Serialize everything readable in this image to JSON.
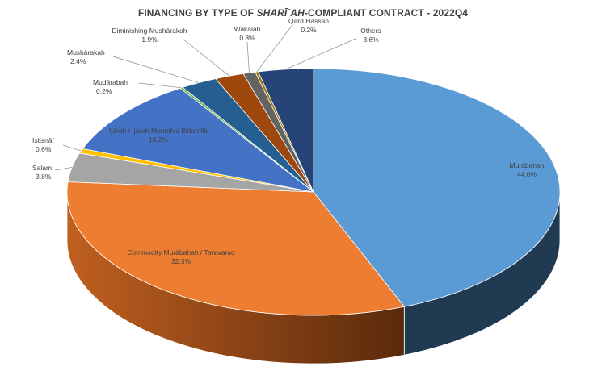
{
  "chart_data": {
    "type": "pie",
    "title": {
      "prefix": "FINANCING BY TYPE OF ",
      "italic": "SHARĪ`AH",
      "suffix": "-COMPLIANT CONTRACT - 2022Q4"
    },
    "slices": [
      {
        "name": "Murābahah",
        "value": 44.0,
        "label": "44.0%",
        "color": "#5B9BD5",
        "side": "#203A52"
      },
      {
        "name": "Commodity Murābahah / Tawwaruq",
        "value": 32.3,
        "label": "32.3%",
        "color": "#ED7D31",
        "side": "#A65A1E"
      },
      {
        "name": "Salam",
        "value": 3.8,
        "label": "3.8%",
        "color": "#A5A5A5",
        "side": "#6E6E6E"
      },
      {
        "name": "Istisnā`",
        "value": 0.6,
        "label": "0.6%",
        "color": "#FFC000",
        "side": "#A37B00"
      },
      {
        "name": "Ijārah / Ijārah Muntahia Bittamlīk",
        "value": 10.2,
        "label": "10.2%",
        "color": "#4472C4",
        "side": "#2B4A80"
      },
      {
        "name": "Mudārabah",
        "value": 0.2,
        "label": "0.2%",
        "color": "#70AD47",
        "side": "#4A7530"
      },
      {
        "name": "Mushārakah",
        "value": 2.4,
        "label": "2.4%",
        "color": "#255E91",
        "side": "#17405F"
      },
      {
        "name": "Diminishing Mushārakah",
        "value": 1.9,
        "label": "1.9%",
        "color": "#9E480E",
        "side": "#6B3009"
      },
      {
        "name": "Wakālah",
        "value": 0.8,
        "label": "0.8%",
        "color": "#636363",
        "side": "#404040"
      },
      {
        "name": "Qard Hassan",
        "value": 0.2,
        "label": "0.2%",
        "color": "#997300",
        "side": "#664D00"
      },
      {
        "name": "Others",
        "value": 3.6,
        "label": "3.6%",
        "color": "#264478",
        "side": "#182C4E"
      }
    ],
    "legend": "none",
    "data_labels": "name and percentage"
  }
}
